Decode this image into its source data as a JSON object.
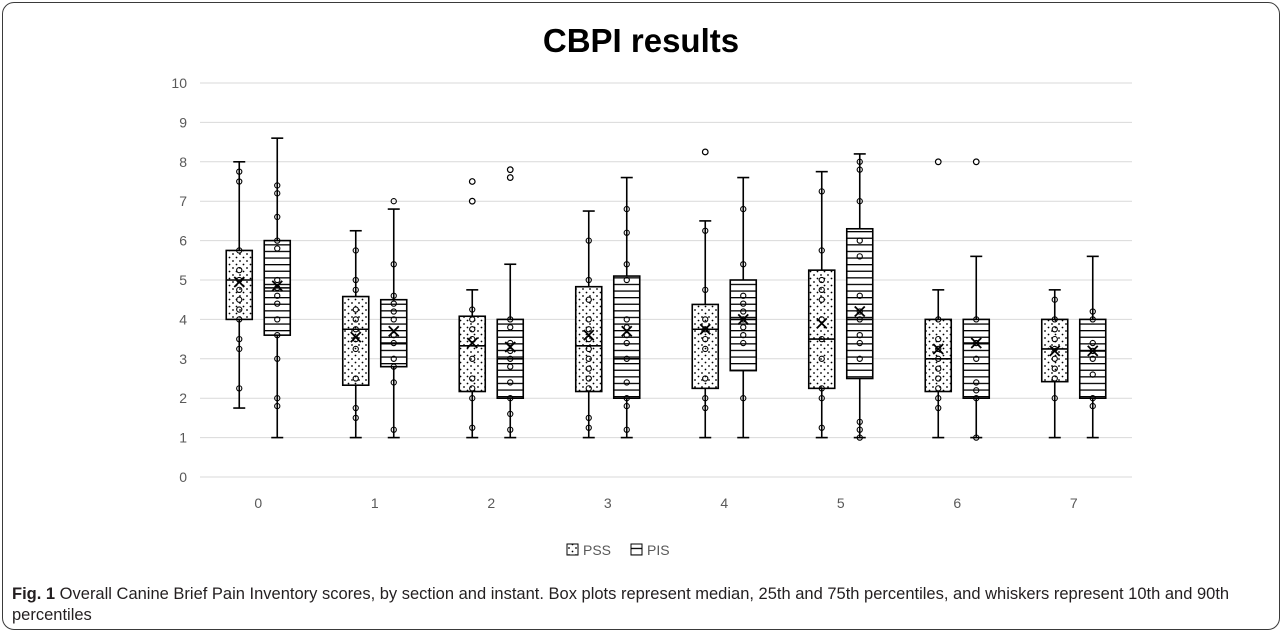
{
  "chart_data": {
    "type": "boxplot",
    "title": "CBPI results",
    "xlabel": "",
    "ylabel": "",
    "ylim": [
      0,
      10
    ],
    "yticks": [
      "0",
      "1",
      "2",
      "3",
      "4",
      "5",
      "6",
      "7",
      "8",
      "9",
      "10"
    ],
    "categories": [
      "0",
      "1",
      "2",
      "3",
      "4",
      "5",
      "6",
      "7"
    ],
    "grid": true,
    "legend_position": "bottom",
    "series": [
      {
        "name": "PSS",
        "pattern": "dots",
        "boxes": [
          {
            "low": 1.75,
            "q1": 4.0,
            "median": 5.0,
            "q3": 5.75,
            "high": 8.0,
            "mean": 4.95,
            "points": [
              7.75,
              7.5,
              5.75,
              5.25,
              5.0,
              4.75,
              4.5,
              4.25,
              4.0,
              3.5,
              3.25,
              2.25
            ]
          },
          {
            "low": 1.0,
            "q1": 2.33,
            "median": 3.75,
            "q3": 4.58,
            "high": 6.25,
            "mean": 3.55,
            "points": [
              5.75,
              5.0,
              4.75,
              4.25,
              4.0,
              3.75,
              3.5,
              3.25,
              2.5,
              1.75,
              1.5
            ]
          },
          {
            "low": 1.0,
            "q1": 2.17,
            "median": 3.33,
            "q3": 4.08,
            "high": 4.75,
            "mean": 3.4,
            "points": [
              4.25,
              4.0,
              3.75,
              3.5,
              3.0,
              2.5,
              2.25,
              2.0,
              1.25
            ],
            "outliers": [
              7.5,
              7.0
            ]
          },
          {
            "low": 1.0,
            "q1": 2.17,
            "median": 3.33,
            "q3": 4.83,
            "high": 6.75,
            "mean": 3.6,
            "points": [
              6.0,
              5.0,
              4.5,
              4.0,
              3.75,
              3.5,
              3.25,
              3.0,
              2.75,
              2.5,
              2.25,
              1.5,
              1.25
            ]
          },
          {
            "low": 1.0,
            "q1": 2.25,
            "median": 3.75,
            "q3": 4.38,
            "high": 6.5,
            "mean": 3.75,
            "points": [
              6.25,
              4.75,
              4.0,
              3.75,
              3.5,
              3.25,
              2.5,
              2.0,
              1.75
            ],
            "outliers": [
              8.25
            ]
          },
          {
            "low": 1.0,
            "q1": 2.25,
            "median": 3.5,
            "q3": 5.25,
            "high": 7.75,
            "mean": 3.9,
            "points": [
              7.25,
              5.75,
              5.0,
              4.75,
              4.5,
              4.0,
              3.5,
              3.0,
              2.25,
              2.0,
              1.25
            ]
          },
          {
            "low": 1.0,
            "q1": 2.17,
            "median": 3.0,
            "q3": 4.0,
            "high": 4.75,
            "mean": 3.25,
            "points": [
              4.0,
              3.5,
              3.25,
              3.0,
              2.75,
              2.5,
              2.25,
              2.0,
              1.75
            ],
            "outliers": [
              8.0
            ]
          },
          {
            "low": 1.0,
            "q1": 2.42,
            "median": 3.25,
            "q3": 4.0,
            "high": 4.75,
            "mean": 3.2,
            "points": [
              4.5,
              4.0,
              3.75,
              3.5,
              3.25,
              3.0,
              2.75,
              2.5,
              2.0
            ]
          }
        ]
      },
      {
        "name": "PIS",
        "pattern": "horizontal-lines",
        "boxes": [
          {
            "low": 1.0,
            "q1": 3.6,
            "median": 4.8,
            "q3": 6.0,
            "high": 8.6,
            "mean": 4.85,
            "points": [
              7.4,
              7.2,
              6.6,
              6.0,
              5.8,
              5.0,
              4.8,
              4.6,
              4.4,
              4.0,
              3.6,
              3.0,
              2.0,
              1.8
            ]
          },
          {
            "low": 1.0,
            "q1": 2.8,
            "median": 3.4,
            "q3": 4.5,
            "high": 6.8,
            "mean": 3.7,
            "points": [
              7.0,
              5.4,
              4.6,
              4.4,
              4.2,
              4.0,
              3.6,
              3.4,
              3.0,
              2.8,
              2.4,
              1.2
            ]
          },
          {
            "low": 1.0,
            "q1": 2.0,
            "median": 3.0,
            "q3": 4.0,
            "high": 5.4,
            "mean": 3.3,
            "points": [
              4.0,
              3.8,
              3.4,
              3.2,
              3.0,
              2.8,
              2.4,
              2.0,
              1.6,
              1.2
            ],
            "outliers": [
              7.8,
              7.6
            ]
          },
          {
            "low": 1.0,
            "q1": 2.0,
            "median": 3.0,
            "q3": 5.1,
            "high": 7.6,
            "mean": 3.7,
            "points": [
              6.8,
              6.2,
              5.4,
              5.0,
              4.0,
              3.8,
              3.6,
              3.4,
              3.0,
              2.4,
              2.0,
              1.8,
              1.2
            ]
          },
          {
            "low": 1.0,
            "q1": 2.7,
            "median": 4.0,
            "q3": 5.0,
            "high": 7.6,
            "mean": 4.0,
            "points": [
              6.8,
              5.4,
              4.6,
              4.4,
              4.2,
              4.0,
              3.8,
              3.6,
              3.4,
              2.0
            ]
          },
          {
            "low": 1.0,
            "q1": 2.5,
            "median": 4.0,
            "q3": 6.3,
            "high": 8.2,
            "mean": 4.2,
            "points": [
              8.0,
              7.8,
              7.0,
              6.0,
              5.6,
              4.6,
              4.2,
              4.0,
              3.6,
              3.4,
              3.0,
              1.4,
              1.2,
              1.0
            ]
          },
          {
            "low": 1.0,
            "q1": 2.0,
            "median": 3.4,
            "q3": 4.0,
            "high": 5.6,
            "mean": 3.4,
            "points": [
              4.0,
              3.4,
              3.0,
              2.4,
              2.2,
              2.0,
              1.0
            ],
            "outliers": [
              8.0
            ]
          },
          {
            "low": 1.0,
            "q1": 2.0,
            "median": 3.2,
            "q3": 4.0,
            "high": 5.6,
            "mean": 3.2,
            "points": [
              4.2,
              4.0,
              3.4,
              3.2,
              3.0,
              2.6,
              2.0,
              1.8
            ]
          }
        ]
      }
    ]
  },
  "caption": {
    "label": "Fig. 1",
    "text": " Overall Canine Brief Pain Inventory scores, by section and instant. Box plots represent median, 25th and 75th percentiles, and whiskers represent 10th and 90th percentiles"
  },
  "colors": {
    "frame": "#3a3a3a",
    "grid": "#d9d9d9",
    "box_stroke": "#000000",
    "tick_text": "#595959",
    "title": "#000000",
    "caption_text": "#231f20"
  }
}
